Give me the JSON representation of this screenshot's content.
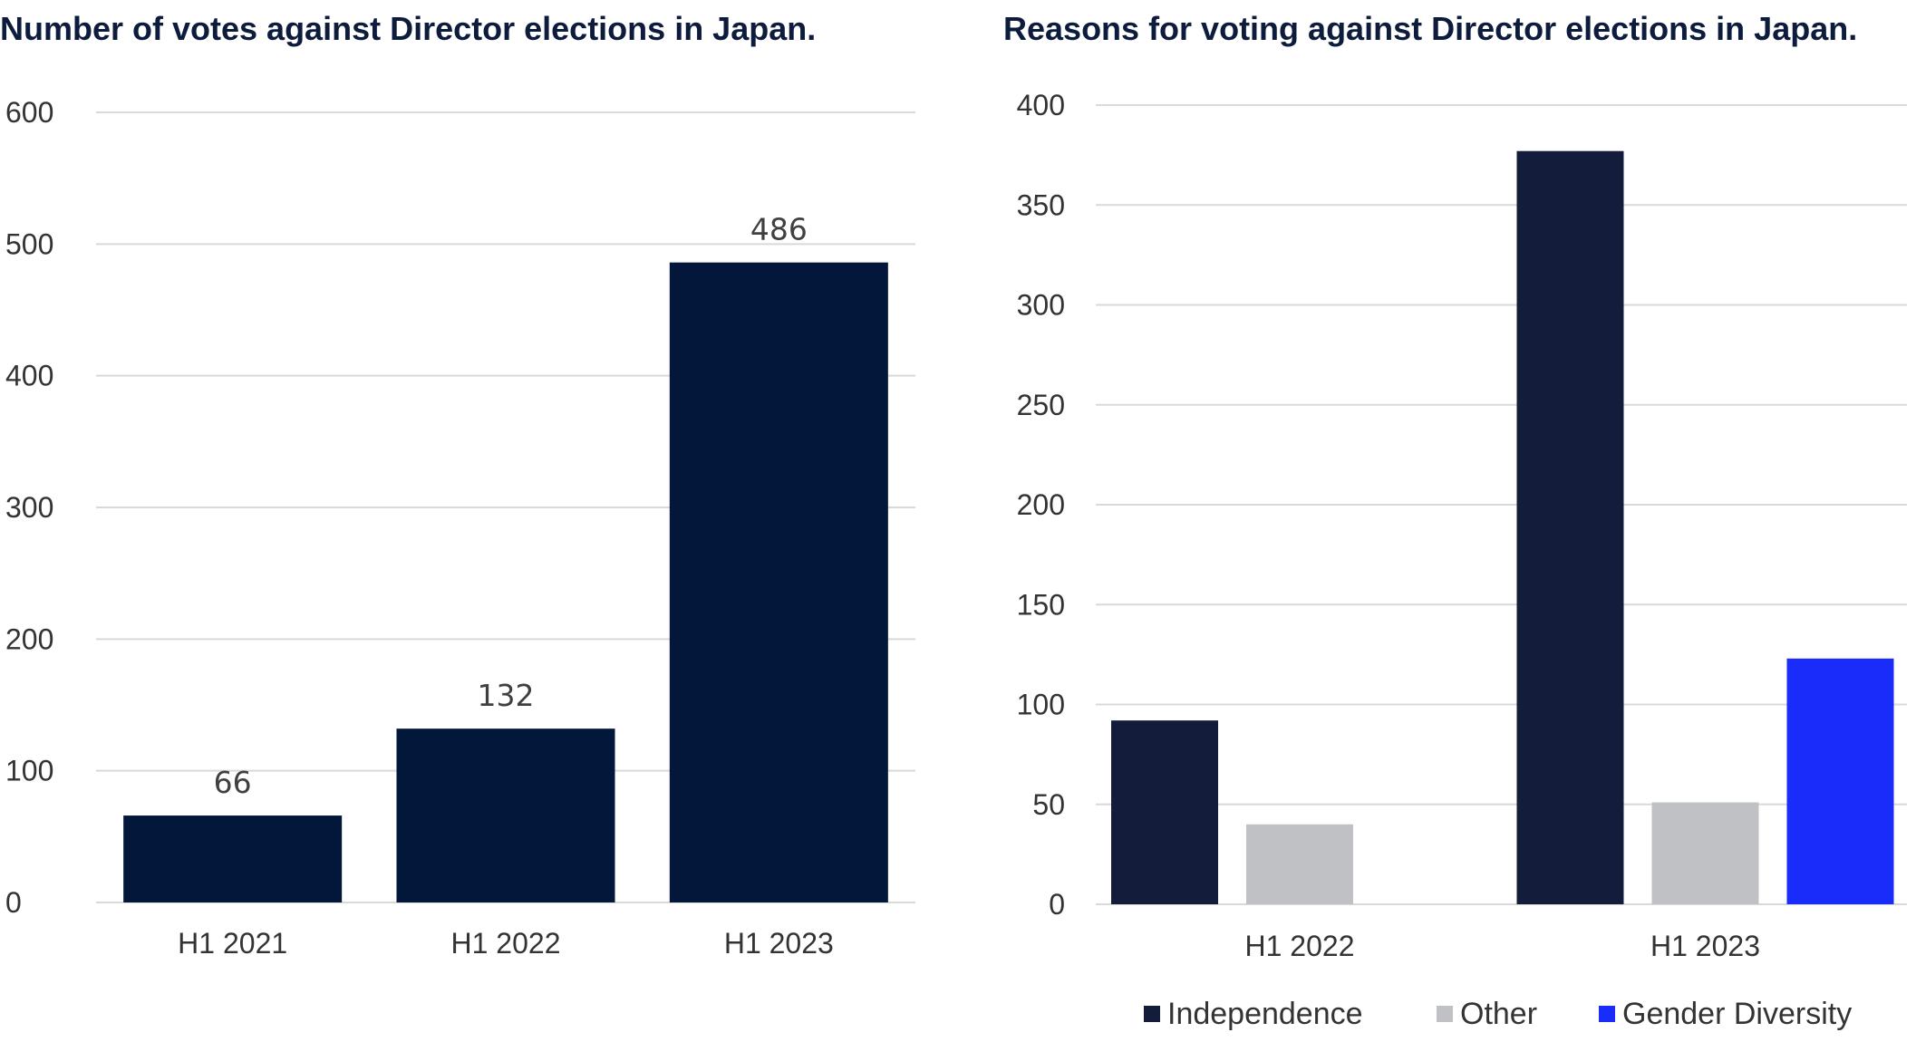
{
  "chart_data": [
    {
      "type": "bar",
      "title": "Number of votes against Director elections in Japan.",
      "categories": [
        "H1 2021",
        "H1 2022",
        "H1 2023"
      ],
      "values": [
        66,
        132,
        486
      ],
      "data_labels": [
        "66",
        "132",
        "486"
      ],
      "ylim": [
        0,
        600
      ],
      "yticks": [
        "0",
        "100",
        "200",
        "300",
        "400",
        "500",
        "600"
      ],
      "grid": true,
      "color": "#02173a"
    },
    {
      "type": "bar",
      "title": "Reasons for voting against Director elections in Japan.",
      "categories": [
        "H1 2022",
        "H1 2023"
      ],
      "series": [
        {
          "name": "Independence",
          "values": [
            92,
            377
          ],
          "color": "#131d3b"
        },
        {
          "name": "Other",
          "values": [
            40,
            51
          ],
          "color": "#c0c1c5"
        },
        {
          "name": "Gender Diversity",
          "values": [
            0,
            123
          ],
          "color": "#1a2cfa"
        }
      ],
      "ylim": [
        0,
        400
      ],
      "yticks": [
        "0",
        "50",
        "100",
        "150",
        "200",
        "250",
        "300",
        "350",
        "400"
      ],
      "grid": true,
      "legend": "bottom"
    }
  ]
}
